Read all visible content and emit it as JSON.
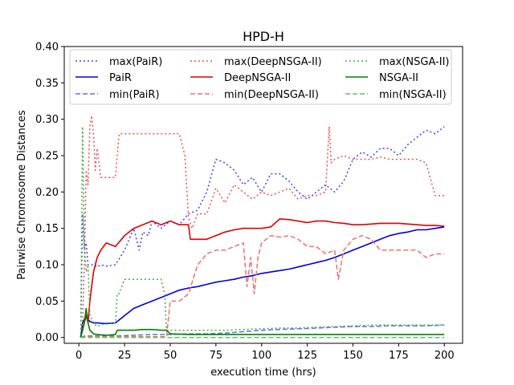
{
  "chart_data": {
    "type": "line",
    "title": "HPD-H",
    "xlabel": "execution time (hrs)",
    "ylabel": "Pairwise Chromosome Distances",
    "xlim": [
      -8,
      210
    ],
    "ylim": [
      -0.008,
      0.4
    ],
    "xticks": [
      0,
      25,
      50,
      75,
      100,
      125,
      150,
      175,
      200
    ],
    "yticks": [
      0.0,
      0.05,
      0.1,
      0.15,
      0.2,
      0.25,
      0.3,
      0.35,
      0.4
    ],
    "xtick_labels": [
      "0",
      "25",
      "50",
      "75",
      "100",
      "125",
      "150",
      "175",
      "200"
    ],
    "ytick_labels": [
      "0.00",
      "0.05",
      "0.10",
      "0.15",
      "0.20",
      "0.25",
      "0.30",
      "0.35",
      "0.40"
    ],
    "grid": false,
    "legend_position": "top",
    "series": [
      {
        "name": "max(PaiR)",
        "color": "#4040ff",
        "style": "dotted",
        "x": [
          1,
          2,
          3,
          4,
          5,
          6,
          8,
          10,
          12,
          15,
          20,
          25,
          30,
          33,
          35,
          38,
          40,
          45,
          50,
          55,
          60,
          65,
          70,
          75,
          80,
          85,
          90,
          95,
          100,
          105,
          110,
          115,
          120,
          125,
          130,
          135,
          140,
          145,
          150,
          155,
          160,
          165,
          170,
          175,
          180,
          185,
          190,
          195,
          200
        ],
        "y": [
          0.0,
          0.17,
          0.12,
          0.13,
          0.1,
          0.1,
          0.1,
          0.097,
          0.1,
          0.098,
          0.1,
          0.12,
          0.15,
          0.12,
          0.145,
          0.14,
          0.16,
          0.15,
          0.16,
          0.155,
          0.17,
          0.175,
          0.2,
          0.245,
          0.24,
          0.23,
          0.21,
          0.22,
          0.2,
          0.225,
          0.225,
          0.215,
          0.2,
          0.19,
          0.2,
          0.21,
          0.2,
          0.215,
          0.245,
          0.255,
          0.248,
          0.26,
          0.26,
          0.25,
          0.265,
          0.275,
          0.285,
          0.28,
          0.29
        ]
      },
      {
        "name": "PaiR",
        "color": "#0000e0",
        "style": "solid",
        "x": [
          1,
          2,
          3,
          4,
          5,
          6,
          8,
          10,
          15,
          20,
          25,
          30,
          35,
          40,
          45,
          50,
          55,
          60,
          65,
          70,
          75,
          80,
          85,
          90,
          95,
          100,
          105,
          110,
          115,
          120,
          125,
          130,
          135,
          140,
          145,
          150,
          155,
          160,
          165,
          170,
          175,
          180,
          185,
          190,
          195,
          200
        ],
        "y": [
          0.0,
          0.02,
          0.025,
          0.03,
          0.025,
          0.022,
          0.02,
          0.02,
          0.019,
          0.02,
          0.03,
          0.04,
          0.045,
          0.05,
          0.055,
          0.06,
          0.065,
          0.068,
          0.07,
          0.073,
          0.076,
          0.078,
          0.08,
          0.083,
          0.085,
          0.088,
          0.09,
          0.092,
          0.094,
          0.097,
          0.1,
          0.103,
          0.106,
          0.11,
          0.115,
          0.12,
          0.125,
          0.13,
          0.135,
          0.14,
          0.143,
          0.145,
          0.148,
          0.148,
          0.15,
          0.152
        ]
      },
      {
        "name": "min(PaiR)",
        "color": "#6070e0",
        "style": "dashed",
        "x": [
          1,
          3,
          5,
          10,
          20,
          30,
          40,
          50,
          60,
          70,
          80,
          90,
          100,
          110,
          120,
          130,
          140,
          150,
          160,
          170,
          180,
          190,
          200
        ],
        "y": [
          0.0,
          0.002,
          0.002,
          0.002,
          0.002,
          0.003,
          0.004,
          0.004,
          0.005,
          0.005,
          0.006,
          0.008,
          0.01,
          0.011,
          0.012,
          0.013,
          0.014,
          0.015,
          0.015,
          0.016,
          0.016,
          0.016,
          0.017
        ]
      },
      {
        "name": "max(DeepNSGA-II)",
        "color": "#f05050",
        "style": "dotted",
        "x": [
          1,
          2,
          3,
          4,
          5,
          6,
          7,
          8,
          9,
          10,
          12,
          15,
          20,
          22,
          25,
          30,
          40,
          50,
          55,
          58,
          60,
          62,
          65,
          70,
          75,
          80,
          85,
          90,
          95,
          100,
          105,
          110,
          115,
          120,
          125,
          130,
          135,
          137,
          138,
          140,
          145,
          150,
          155,
          160,
          165,
          170,
          175,
          180,
          185,
          190,
          195,
          200
        ],
        "y": [
          0.0,
          0.02,
          0.1,
          0.23,
          0.21,
          0.29,
          0.305,
          0.28,
          0.23,
          0.26,
          0.22,
          0.22,
          0.22,
          0.28,
          0.28,
          0.28,
          0.28,
          0.28,
          0.28,
          0.25,
          0.165,
          0.15,
          0.17,
          0.17,
          0.205,
          0.185,
          0.21,
          0.2,
          0.19,
          0.2,
          0.195,
          0.2,
          0.205,
          0.19,
          0.195,
          0.195,
          0.2,
          0.29,
          0.24,
          0.245,
          0.25,
          0.245,
          0.245,
          0.245,
          0.248,
          0.245,
          0.245,
          0.245,
          0.245,
          0.24,
          0.195,
          0.195
        ]
      },
      {
        "name": "DeepNSGA-II",
        "color": "#e00000",
        "style": "solid",
        "x": [
          1,
          2,
          3,
          4,
          5,
          6,
          8,
          10,
          12,
          15,
          20,
          25,
          30,
          35,
          40,
          45,
          50,
          55,
          60,
          61,
          65,
          70,
          75,
          80,
          85,
          90,
          95,
          100,
          105,
          110,
          115,
          120,
          125,
          130,
          135,
          140,
          145,
          150,
          155,
          160,
          165,
          170,
          175,
          180,
          185,
          190,
          195,
          200
        ],
        "y": [
          0.0,
          0.01,
          0.02,
          0.03,
          0.02,
          0.05,
          0.09,
          0.11,
          0.12,
          0.13,
          0.125,
          0.14,
          0.15,
          0.155,
          0.16,
          0.155,
          0.16,
          0.155,
          0.155,
          0.135,
          0.135,
          0.135,
          0.14,
          0.145,
          0.148,
          0.15,
          0.15,
          0.15,
          0.152,
          0.163,
          0.162,
          0.16,
          0.158,
          0.16,
          0.16,
          0.158,
          0.157,
          0.155,
          0.155,
          0.156,
          0.157,
          0.157,
          0.157,
          0.156,
          0.155,
          0.154,
          0.154,
          0.153
        ]
      },
      {
        "name": "min(DeepNSGA-II)",
        "color": "#f07070",
        "style": "dashed",
        "x": [
          1,
          3,
          5,
          10,
          20,
          30,
          40,
          45,
          48,
          50,
          55,
          60,
          65,
          70,
          75,
          80,
          85,
          90,
          92,
          94,
          96,
          98,
          100,
          105,
          110,
          115,
          120,
          125,
          130,
          135,
          140,
          142,
          145,
          150,
          155,
          160,
          165,
          170,
          175,
          180,
          185,
          190,
          195,
          200
        ],
        "y": [
          0.0,
          0.001,
          0.001,
          0.001,
          0.001,
          0.001,
          0.001,
          0.001,
          0.001,
          0.05,
          0.05,
          0.06,
          0.1,
          0.115,
          0.12,
          0.12,
          0.125,
          0.13,
          0.07,
          0.11,
          0.06,
          0.11,
          0.13,
          0.14,
          0.138,
          0.14,
          0.135,
          0.125,
          0.125,
          0.115,
          0.12,
          0.08,
          0.12,
          0.135,
          0.14,
          0.135,
          0.12,
          0.12,
          0.12,
          0.12,
          0.12,
          0.11,
          0.115,
          0.115
        ]
      },
      {
        "name": "max(NSGA-II)",
        "color": "#40b040",
        "style": "dotted",
        "x": [
          1,
          2,
          3,
          4,
          5,
          6,
          8,
          10,
          15,
          20,
          21,
          22,
          25,
          30,
          35,
          40,
          45,
          47,
          48,
          50,
          60,
          70,
          80,
          90,
          100,
          110,
          120,
          130,
          140,
          150,
          160,
          170,
          180,
          190,
          200
        ],
        "y": [
          0.0,
          0.29,
          0.13,
          0.09,
          0.1,
          0.03,
          0.02,
          0.015,
          0.02,
          0.02,
          0.06,
          0.06,
          0.08,
          0.08,
          0.08,
          0.08,
          0.08,
          0.06,
          0.01,
          0.01,
          0.01,
          0.01,
          0.01,
          0.011,
          0.012,
          0.013,
          0.013,
          0.014,
          0.015,
          0.016,
          0.017,
          0.017,
          0.017,
          0.017,
          0.017
        ]
      },
      {
        "name": "NSGA-II",
        "color": "#008000",
        "style": "solid",
        "x": [
          1,
          2,
          3,
          4,
          5,
          6,
          8,
          10,
          15,
          20,
          21,
          25,
          30,
          35,
          40,
          45,
          48,
          50,
          60,
          70,
          80,
          90,
          100,
          110,
          120,
          130,
          140,
          150,
          160,
          170,
          180,
          190,
          200
        ],
        "y": [
          0.0,
          0.01,
          0.02,
          0.04,
          0.02,
          0.01,
          0.005,
          0.004,
          0.003,
          0.004,
          0.01,
          0.01,
          0.01,
          0.011,
          0.011,
          0.01,
          0.01,
          0.005,
          0.004,
          0.004,
          0.004,
          0.004,
          0.004,
          0.004,
          0.004,
          0.004,
          0.004,
          0.004,
          0.004,
          0.004,
          0.004,
          0.004,
          0.004
        ]
      },
      {
        "name": "min(NSGA-II)",
        "color": "#60c060",
        "style": "dashed",
        "x": [
          1,
          3,
          5,
          10,
          20,
          50,
          100,
          150,
          200
        ],
        "y": [
          0.0,
          0.0,
          0.0,
          0.0,
          0.0,
          0.0,
          0.0,
          0.0,
          0.0
        ]
      }
    ]
  }
}
